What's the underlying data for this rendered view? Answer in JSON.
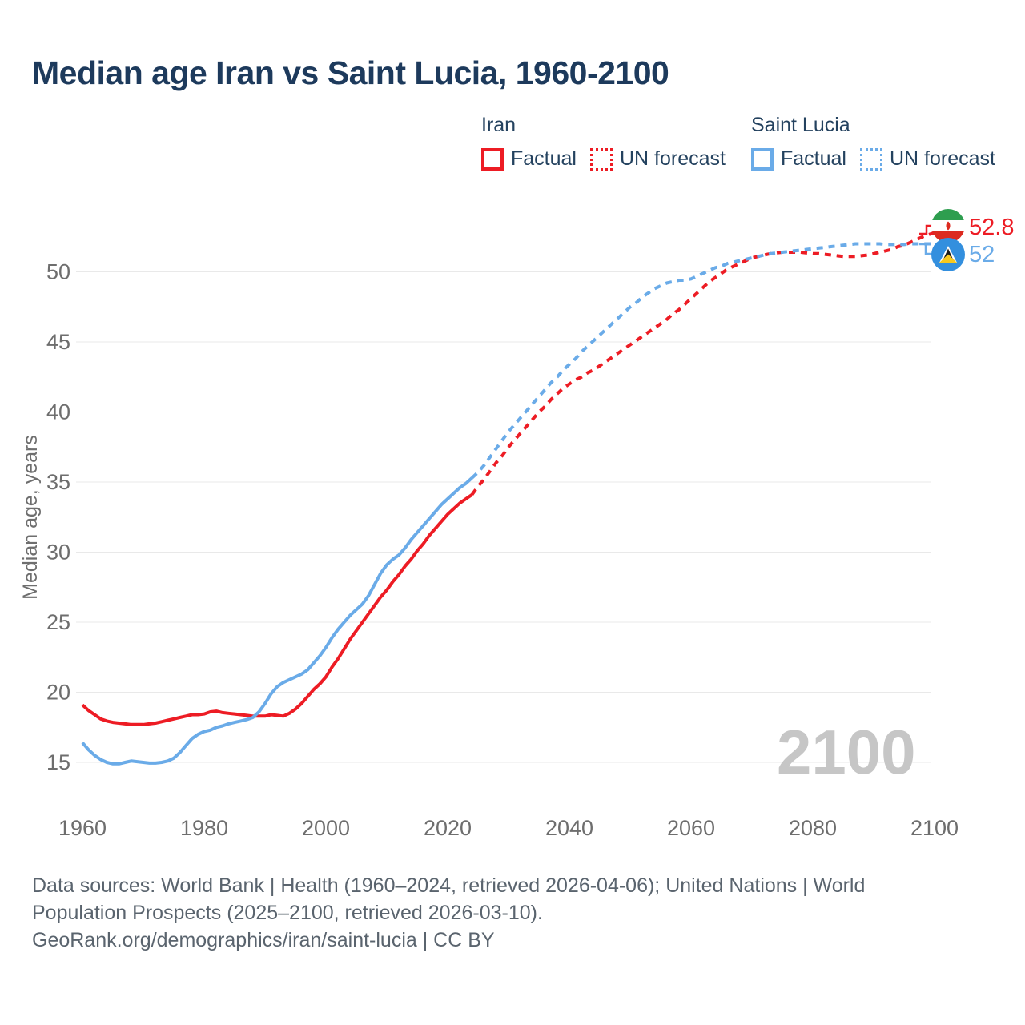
{
  "page": {
    "title": "Median age Iran vs Saint Lucia, 1960-2100"
  },
  "legend": {
    "iran": {
      "title": "Iran",
      "factual": "Factual",
      "forecast": "UN forecast"
    },
    "saint_lucia": {
      "title": "Saint Lucia",
      "factual": "Factual",
      "forecast": "UN forecast"
    }
  },
  "colors": {
    "iran": "#ed1c24",
    "saint_lucia": "#6aabe8",
    "title_text": "#1d3a5c",
    "axis_text": "#6e6e6e",
    "grid": "#e9e9e9",
    "watermark": "#c6c6c6",
    "footer_text": "#5a646e",
    "saint_lucia_flag_field": "#338fde"
  },
  "chart_data": {
    "type": "line",
    "title": "Median age Iran vs Saint Lucia, 1960-2100",
    "xlabel": "",
    "ylabel": "Median age, years",
    "x_ticks": [
      1960,
      1980,
      2000,
      2020,
      2040,
      2060,
      2080,
      2100
    ],
    "y_ticks": [
      15,
      20,
      25,
      30,
      35,
      40,
      45,
      50
    ],
    "xlim": [
      1959,
      2113
    ],
    "ylim": [
      13,
      54.5
    ],
    "grid": "horizontal",
    "legend_position": "top-right",
    "watermark": "2100",
    "series": [
      {
        "name": "Iran Factual",
        "country": "Iran",
        "kind": "factual",
        "color": "#ed1c24",
        "dashed": false,
        "x_start": 1960,
        "x_step": 1,
        "values": [
          19.1,
          18.7,
          18.4,
          18.1,
          17.95,
          17.85,
          17.8,
          17.75,
          17.7,
          17.7,
          17.7,
          17.75,
          17.8,
          17.9,
          18.0,
          18.1,
          18.2,
          18.3,
          18.4,
          18.4,
          18.45,
          18.6,
          18.65,
          18.55,
          18.5,
          18.45,
          18.4,
          18.35,
          18.3,
          18.3,
          18.3,
          18.4,
          18.35,
          18.3,
          18.5,
          18.8,
          19.2,
          19.7,
          20.2,
          20.6,
          21.1,
          21.8,
          22.4,
          23.1,
          23.8,
          24.4,
          25.0,
          25.6,
          26.2,
          26.8,
          27.3,
          27.9,
          28.4,
          29.0,
          29.5,
          30.1,
          30.6,
          31.2,
          31.7,
          32.2,
          32.7,
          33.1,
          33.5,
          33.8,
          34.1
        ]
      },
      {
        "name": "Iran UN forecast",
        "country": "Iran",
        "kind": "forecast",
        "color": "#ed1c24",
        "dashed": true,
        "x_start": 2024,
        "x_step": 1,
        "values": [
          34.1,
          34.7,
          35.2,
          35.8,
          36.4,
          36.9,
          37.5,
          38.0,
          38.5,
          39.0,
          39.5,
          40.0,
          40.4,
          40.9,
          41.3,
          41.7,
          42.0,
          42.3,
          42.5,
          42.8,
          43.0,
          43.3,
          43.6,
          43.9,
          44.2,
          44.5,
          44.8,
          45.1,
          45.4,
          45.7,
          46.0,
          46.3,
          46.6,
          47.0,
          47.3,
          47.7,
          48.1,
          48.5,
          48.9,
          49.3,
          49.6,
          49.9,
          50.2,
          50.4,
          50.6,
          50.8,
          51.0,
          51.1,
          51.2,
          51.3,
          51.35,
          51.4,
          51.4,
          51.4,
          51.4,
          51.35,
          51.3,
          51.3,
          51.25,
          51.2,
          51.15,
          51.1,
          51.1,
          51.1,
          51.15,
          51.2,
          51.3,
          51.4,
          51.5,
          51.6,
          51.8,
          51.9,
          52.1,
          52.3,
          52.5,
          52.65,
          52.8
        ]
      },
      {
        "name": "Saint Lucia Factual",
        "country": "Saint Lucia",
        "kind": "factual",
        "color": "#6aabe8",
        "dashed": false,
        "x_start": 1960,
        "x_step": 1,
        "values": [
          16.4,
          15.9,
          15.5,
          15.2,
          15.0,
          14.9,
          14.9,
          15.0,
          15.1,
          15.05,
          15.0,
          14.95,
          14.95,
          15.0,
          15.1,
          15.3,
          15.7,
          16.2,
          16.7,
          17.0,
          17.2,
          17.3,
          17.5,
          17.6,
          17.75,
          17.85,
          17.95,
          18.05,
          18.2,
          18.6,
          19.2,
          19.9,
          20.4,
          20.7,
          20.9,
          21.1,
          21.3,
          21.6,
          22.1,
          22.6,
          23.2,
          23.9,
          24.5,
          25.0,
          25.5,
          25.9,
          26.3,
          26.9,
          27.7,
          28.5,
          29.1,
          29.5,
          29.8,
          30.3,
          30.9,
          31.4,
          31.9,
          32.4,
          32.9,
          33.4,
          33.8,
          34.2,
          34.6,
          34.9,
          35.3
        ]
      },
      {
        "name": "Saint Lucia UN forecast",
        "country": "Saint Lucia",
        "kind": "forecast",
        "color": "#6aabe8",
        "dashed": true,
        "x_start": 2024,
        "x_step": 1,
        "values": [
          35.3,
          35.7,
          36.2,
          36.8,
          37.4,
          38.0,
          38.6,
          39.1,
          39.6,
          40.1,
          40.6,
          41.1,
          41.6,
          42.1,
          42.5,
          43.0,
          43.4,
          43.8,
          44.3,
          44.7,
          45.1,
          45.5,
          45.9,
          46.3,
          46.7,
          47.1,
          47.5,
          47.8,
          48.2,
          48.5,
          48.8,
          49.0,
          49.2,
          49.3,
          49.4,
          49.4,
          49.5,
          49.7,
          49.9,
          50.1,
          50.3,
          50.4,
          50.6,
          50.7,
          50.8,
          50.9,
          51.0,
          51.1,
          51.2,
          51.3,
          51.35,
          51.4,
          51.45,
          51.5,
          51.55,
          51.6,
          51.65,
          51.7,
          51.75,
          51.8,
          51.85,
          51.9,
          51.95,
          52.0,
          52.0,
          52.0,
          52.0,
          52.0,
          51.95,
          51.95,
          51.95,
          51.95,
          52.0,
          52.0,
          52.0,
          52.0,
          52.0
        ]
      }
    ],
    "end_labels": [
      {
        "series": "Iran UN forecast",
        "label": "52.8",
        "color": "#ed1c24"
      },
      {
        "series": "Saint Lucia UN forecast",
        "label": "52",
        "color": "#6aabe8"
      }
    ]
  },
  "footer": {
    "line1": "Data sources: World Bank | Health (1960–2024, retrieved 2026-04-06); United Nations | World",
    "line2": "Population Prospects (2025–2100, retrieved 2026-03-10).",
    "line3": "GeoRank.org/demographics/iran/saint-lucia | CC BY"
  }
}
